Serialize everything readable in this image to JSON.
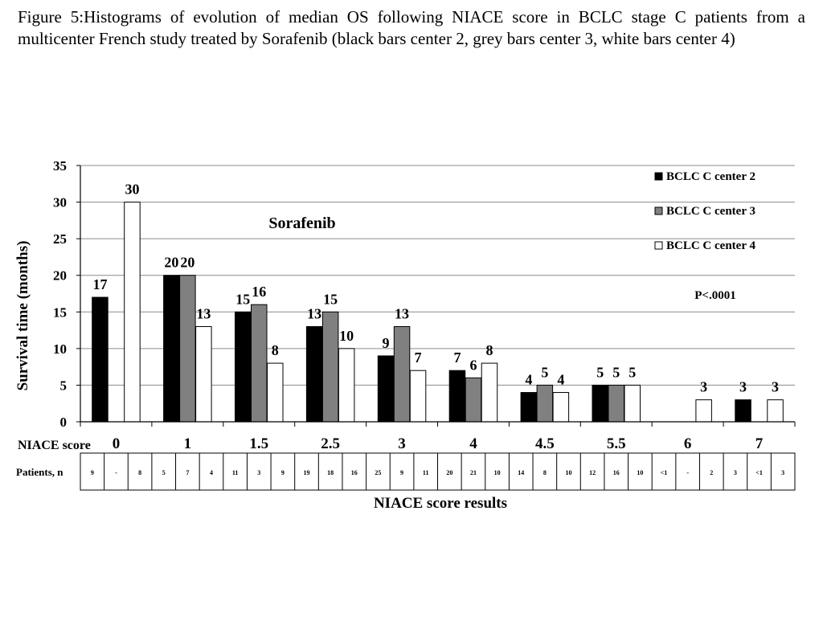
{
  "caption": "Figure 5:Histograms of evolution of median OS following NIACE score in BCLC stage C patients from a multicenter French study treated by Sorafenib (black bars center 2, grey bars center 3, white bars center 4)",
  "colors": {
    "center2": "#000000",
    "center3": "#808080",
    "center4": "#ffffff",
    "grid": "#8c8c8c"
  },
  "chart_data": {
    "type": "bar",
    "title": "Sorafenib",
    "xlabel": "NIACE score results",
    "ylabel": "Survival time (months)",
    "ylim": [
      0,
      35
    ],
    "yticks": [
      0,
      5,
      10,
      15,
      20,
      25,
      30,
      35
    ],
    "grid": true,
    "legend_position": "top-right",
    "annotation": "P<.0001",
    "row_label_score": "NIACE score",
    "row_label_patients": "Patients, n",
    "categories": [
      "0",
      "1",
      "1.5",
      "2.5",
      "3",
      "4",
      "4.5",
      "5.5",
      "6",
      "7"
    ],
    "series": [
      {
        "name": "BCLC C center 2",
        "values": [
          17,
          20,
          15,
          13,
          9,
          7,
          4,
          5,
          null,
          3
        ],
        "labels": [
          "17",
          "20",
          "15",
          "13",
          "9",
          "7",
          "4",
          "5",
          "",
          "3"
        ]
      },
      {
        "name": "BCLC C center 3",
        "values": [
          null,
          20,
          16,
          15,
          13,
          6,
          5,
          5,
          null,
          null
        ],
        "labels": [
          "",
          "20",
          "16",
          "15",
          "13",
          "6",
          "5",
          "5",
          "",
          ""
        ]
      },
      {
        "name": "BCLC C center 4",
        "values": [
          30,
          13,
          8,
          10,
          7,
          8,
          4,
          5,
          3,
          3
        ],
        "labels": [
          "30",
          "13",
          "8",
          "10",
          "7",
          "8",
          "4",
          "5",
          "3",
          "3"
        ]
      }
    ],
    "patients": [
      [
        "9",
        "-",
        "8"
      ],
      [
        "5",
        "7",
        "4"
      ],
      [
        "11",
        "3",
        "9"
      ],
      [
        "19",
        "18",
        "16"
      ],
      [
        "25",
        "9",
        "11"
      ],
      [
        "20",
        "21",
        "10"
      ],
      [
        "14",
        "8",
        "10"
      ],
      [
        "12",
        "16",
        "10"
      ],
      [
        "<1",
        "-",
        "2"
      ],
      [
        "3",
        "<1",
        "3"
      ]
    ]
  }
}
